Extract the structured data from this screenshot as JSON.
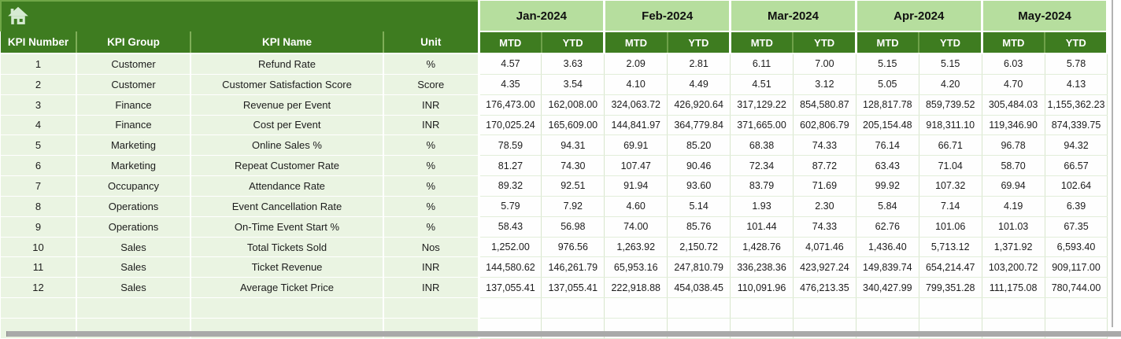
{
  "header": {
    "home_icon": "home-icon"
  },
  "table": {
    "column_headers": [
      "KPI Number",
      "KPI Group",
      "KPI Name",
      "Unit"
    ],
    "months": [
      "Jan-2024",
      "Feb-2024",
      "Mar-2024",
      "Apr-2024",
      "May-2024"
    ],
    "period_headers": [
      "MTD",
      "YTD"
    ],
    "rows": [
      {
        "kpi_number": "1",
        "kpi_group": "Customer",
        "kpi_name": "Refund Rate",
        "unit": "%",
        "values": [
          "4.57",
          "3.63",
          "2.09",
          "2.81",
          "6.11",
          "7.00",
          "5.15",
          "5.15",
          "6.03",
          "5.78"
        ]
      },
      {
        "kpi_number": "2",
        "kpi_group": "Customer",
        "kpi_name": "Customer Satisfaction Score",
        "unit": "Score",
        "values": [
          "4.35",
          "3.54",
          "4.10",
          "4.49",
          "4.51",
          "3.12",
          "5.05",
          "4.20",
          "4.70",
          "4.13"
        ]
      },
      {
        "kpi_number": "3",
        "kpi_group": "Finance",
        "kpi_name": "Revenue per Event",
        "unit": "INR",
        "values": [
          "176,473.00",
          "162,008.00",
          "324,063.72",
          "426,920.64",
          "317,129.22",
          "854,580.87",
          "128,817.78",
          "859,739.52",
          "305,484.03",
          "1,155,362.23"
        ]
      },
      {
        "kpi_number": "4",
        "kpi_group": "Finance",
        "kpi_name": "Cost per Event",
        "unit": "INR",
        "values": [
          "170,025.24",
          "165,609.00",
          "144,841.97",
          "364,779.84",
          "371,665.00",
          "602,806.79",
          "205,154.48",
          "918,311.10",
          "119,346.90",
          "874,339.75"
        ]
      },
      {
        "kpi_number": "5",
        "kpi_group": "Marketing",
        "kpi_name": "Online Sales %",
        "unit": "%",
        "values": [
          "78.59",
          "94.31",
          "69.91",
          "85.20",
          "68.38",
          "74.33",
          "76.14",
          "66.71",
          "96.78",
          "94.32"
        ]
      },
      {
        "kpi_number": "6",
        "kpi_group": "Marketing",
        "kpi_name": "Repeat Customer Rate",
        "unit": "%",
        "values": [
          "81.27",
          "74.30",
          "107.47",
          "90.46",
          "72.34",
          "87.72",
          "63.43",
          "71.04",
          "58.70",
          "66.57"
        ]
      },
      {
        "kpi_number": "7",
        "kpi_group": "Occupancy",
        "kpi_name": "Attendance Rate",
        "unit": "%",
        "values": [
          "89.32",
          "92.51",
          "91.94",
          "93.60",
          "83.79",
          "71.69",
          "99.92",
          "107.32",
          "69.94",
          "102.64"
        ]
      },
      {
        "kpi_number": "8",
        "kpi_group": "Operations",
        "kpi_name": "Event Cancellation Rate",
        "unit": "%",
        "values": [
          "5.79",
          "7.92",
          "4.60",
          "5.14",
          "1.93",
          "2.30",
          "5.84",
          "7.14",
          "4.19",
          "6.39"
        ]
      },
      {
        "kpi_number": "9",
        "kpi_group": "Operations",
        "kpi_name": "On-Time Event Start %",
        "unit": "%",
        "values": [
          "58.43",
          "56.98",
          "74.00",
          "85.76",
          "101.44",
          "74.33",
          "62.76",
          "101.06",
          "101.03",
          "67.35"
        ]
      },
      {
        "kpi_number": "10",
        "kpi_group": "Sales",
        "kpi_name": "Total Tickets Sold",
        "unit": "Nos",
        "values": [
          "1,252.00",
          "976.56",
          "1,263.92",
          "2,150.72",
          "1,428.76",
          "4,071.46",
          "1,436.40",
          "5,713.12",
          "1,371.92",
          "6,593.40"
        ]
      },
      {
        "kpi_number": "11",
        "kpi_group": "Sales",
        "kpi_name": "Ticket Revenue",
        "unit": "INR",
        "values": [
          "144,580.62",
          "146,261.79",
          "65,953.16",
          "247,810.79",
          "336,238.36",
          "423,927.24",
          "149,839.74",
          "654,214.47",
          "103,200.72",
          "909,117.00"
        ]
      },
      {
        "kpi_number": "12",
        "kpi_group": "Sales",
        "kpi_name": "Average Ticket Price",
        "unit": "INR",
        "values": [
          "137,055.41",
          "137,055.41",
          "222,918.88",
          "454,038.45",
          "110,091.96",
          "476,213.35",
          "340,427.99",
          "799,351.28",
          "111,175.08",
          "780,744.00"
        ]
      }
    ],
    "empty_row_count": 2
  },
  "colors": {
    "header_dark_green": "#3e7c20",
    "month_band_green": "#b6de9e",
    "left_column_tint": "#eaf4e2",
    "data_cell_white": "#fefefe",
    "grid_line_green": "#d8e6cd",
    "scrollbar_gray": "#a9a9a9",
    "home_icon_pale": "#d6ebd2"
  }
}
